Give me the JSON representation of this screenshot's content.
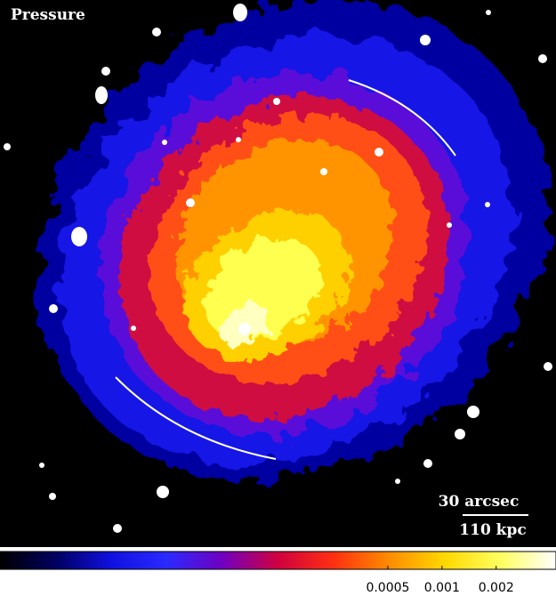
{
  "image": {
    "label": "Pressure"
  },
  "scale_bar": {
    "angular": "30 arcsec",
    "physical": "110 kpc"
  },
  "colorbar": {
    "scale": "log",
    "lim": [
      3.5e-06,
      0.0043
    ],
    "ticks": [
      0.0005,
      0.001,
      0.002
    ],
    "colors": [
      "#000000",
      "#000060",
      "#1010e0",
      "#2a2aff",
      "#7000c0",
      "#d00040",
      "#ff3010",
      "#ff8c00",
      "#ffd800",
      "#ffff60",
      "#ffffff"
    ]
  }
}
